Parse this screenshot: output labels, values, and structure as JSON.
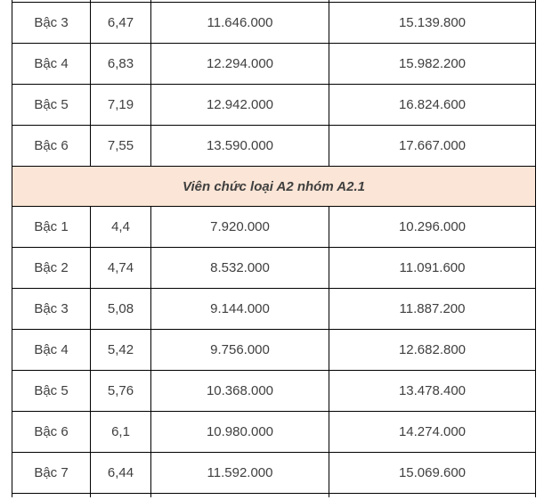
{
  "table": {
    "colors": {
      "section_background": "#fbe5d6",
      "text": "#3f3f3f",
      "section_text": "#1f1f1f",
      "border": "#000000"
    },
    "sections": [
      {
        "type": "rows",
        "rows": [
          [
            "Bậc 3",
            "6,47",
            "11.646.000",
            "15.139.800"
          ],
          [
            "Bậc 4",
            "6,83",
            "12.294.000",
            "15.982.200"
          ],
          [
            "Bậc 5",
            "7,19",
            "12.942.000",
            "16.824.600"
          ],
          [
            "Bậc 6",
            "7,55",
            "13.590.000",
            "17.667.000"
          ]
        ]
      },
      {
        "type": "section_header",
        "label": "Viên chức loại A2 nhóm A2.1"
      },
      {
        "type": "rows",
        "rows": [
          [
            "Bậc 1",
            "4,4",
            "7.920.000",
            "10.296.000"
          ],
          [
            "Bậc 2",
            "4,74",
            "8.532.000",
            "11.091.600"
          ],
          [
            "Bậc 3",
            "5,08",
            "9.144.000",
            "11.887.200"
          ],
          [
            "Bậc 4",
            "5,42",
            "9.756.000",
            "12.682.800"
          ],
          [
            "Bậc 5",
            "5,76",
            "10.368.000",
            "13.478.400"
          ],
          [
            "Bậc 6",
            "6,1",
            "10.980.000",
            "14.274.000"
          ],
          [
            "Bậc 7",
            "6,44",
            "11.592.000",
            "15.069.600"
          ]
        ]
      }
    ]
  }
}
